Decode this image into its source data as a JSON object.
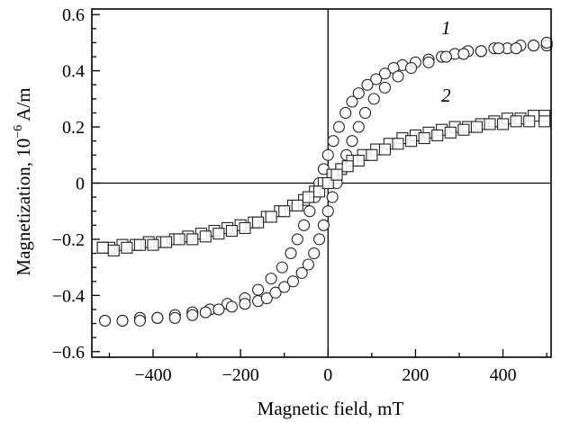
{
  "chart_data": {
    "type": "scatter",
    "xlabel": "Magnetic field, mT",
    "ylabel_prefix": "Magnetization, 10",
    "ylabel_exp": "−6",
    "ylabel_suffix": " A/m",
    "xlim": [
      -540,
      510
    ],
    "ylim": [
      -0.62,
      0.62
    ],
    "xticks": [
      -400,
      -200,
      0,
      200,
      400
    ],
    "xtick_labels": [
      "−400",
      "−200",
      "0",
      "200",
      "400"
    ],
    "yticks": [
      -0.6,
      -0.4,
      -0.2,
      0,
      0.2,
      0.4,
      0.6
    ],
    "ytick_labels": [
      "−0.6",
      "−0.4",
      "−0.2",
      "0",
      "0.2",
      "0.4",
      "0.6"
    ],
    "zero_lines": true,
    "grid": false,
    "series": [
      {
        "label": "1",
        "marker": "circle",
        "label_position": [
          270,
          0.53
        ],
        "branch_descending": [
          [
            500,
            0.49
          ],
          [
            470,
            0.49
          ],
          [
            440,
            0.49
          ],
          [
            410,
            0.48
          ],
          [
            380,
            0.48
          ],
          [
            350,
            0.47
          ],
          [
            320,
            0.47
          ],
          [
            290,
            0.46
          ],
          [
            260,
            0.45
          ],
          [
            230,
            0.44
          ],
          [
            200,
            0.43
          ],
          [
            170,
            0.42
          ],
          [
            150,
            0.41
          ],
          [
            130,
            0.39
          ],
          [
            110,
            0.37
          ],
          [
            90,
            0.35
          ],
          [
            70,
            0.32
          ],
          [
            55,
            0.29
          ],
          [
            40,
            0.25
          ],
          [
            25,
            0.2
          ],
          [
            12,
            0.15
          ],
          [
            0,
            0.1
          ],
          [
            -10,
            0.05
          ],
          [
            -20,
            0.0
          ],
          [
            -30,
            -0.05
          ],
          [
            -42,
            -0.1
          ],
          [
            -55,
            -0.15
          ],
          [
            -70,
            -0.2
          ],
          [
            -85,
            -0.25
          ],
          [
            -105,
            -0.3
          ],
          [
            -130,
            -0.34
          ],
          [
            -160,
            -0.38
          ],
          [
            -190,
            -0.41
          ],
          [
            -230,
            -0.43
          ],
          [
            -270,
            -0.45
          ],
          [
            -310,
            -0.46
          ],
          [
            -350,
            -0.47
          ],
          [
            -390,
            -0.48
          ],
          [
            -430,
            -0.48
          ],
          [
            -470,
            -0.49
          ],
          [
            -510,
            -0.49
          ]
        ],
        "branch_ascending": [
          [
            -510,
            -0.49
          ],
          [
            -470,
            -0.49
          ],
          [
            -430,
            -0.49
          ],
          [
            -390,
            -0.48
          ],
          [
            -350,
            -0.48
          ],
          [
            -310,
            -0.47
          ],
          [
            -280,
            -0.46
          ],
          [
            -250,
            -0.45
          ],
          [
            -220,
            -0.44
          ],
          [
            -190,
            -0.43
          ],
          [
            -160,
            -0.42
          ],
          [
            -140,
            -0.41
          ],
          [
            -120,
            -0.39
          ],
          [
            -100,
            -0.37
          ],
          [
            -80,
            -0.35
          ],
          [
            -60,
            -0.32
          ],
          [
            -45,
            -0.29
          ],
          [
            -32,
            -0.25
          ],
          [
            -20,
            -0.2
          ],
          [
            -10,
            -0.15
          ],
          [
            0,
            -0.1
          ],
          [
            10,
            -0.05
          ],
          [
            20,
            0.0
          ],
          [
            30,
            0.05
          ],
          [
            42,
            0.1
          ],
          [
            55,
            0.15
          ],
          [
            70,
            0.2
          ],
          [
            85,
            0.25
          ],
          [
            105,
            0.3
          ],
          [
            130,
            0.34
          ],
          [
            160,
            0.38
          ],
          [
            190,
            0.41
          ],
          [
            230,
            0.43
          ],
          [
            270,
            0.45
          ],
          [
            310,
            0.46
          ],
          [
            350,
            0.47
          ],
          [
            390,
            0.48
          ],
          [
            430,
            0.48
          ],
          [
            470,
            0.49
          ],
          [
            500,
            0.5
          ]
        ]
      },
      {
        "label": "2",
        "marker": "square",
        "label_position": [
          270,
          0.29
        ],
        "branch_descending": [
          [
            495,
            0.24
          ],
          [
            470,
            0.24
          ],
          [
            440,
            0.23
          ],
          [
            410,
            0.23
          ],
          [
            380,
            0.22
          ],
          [
            350,
            0.21
          ],
          [
            320,
            0.2
          ],
          [
            290,
            0.2
          ],
          [
            260,
            0.19
          ],
          [
            230,
            0.18
          ],
          [
            200,
            0.17
          ],
          [
            170,
            0.16
          ],
          [
            140,
            0.14
          ],
          [
            110,
            0.12
          ],
          [
            80,
            0.1
          ],
          [
            55,
            0.08
          ],
          [
            30,
            0.05
          ],
          [
            10,
            0.03
          ],
          [
            -10,
            0.0
          ],
          [
            -30,
            -0.03
          ],
          [
            -55,
            -0.06
          ],
          [
            -80,
            -0.08
          ],
          [
            -110,
            -0.1
          ],
          [
            -140,
            -0.12
          ],
          [
            -170,
            -0.14
          ],
          [
            -200,
            -0.15
          ],
          [
            -230,
            -0.16
          ],
          [
            -260,
            -0.17
          ],
          [
            -290,
            -0.18
          ],
          [
            -320,
            -0.19
          ],
          [
            -350,
            -0.2
          ],
          [
            -380,
            -0.21
          ],
          [
            -410,
            -0.21
          ],
          [
            -440,
            -0.22
          ],
          [
            -470,
            -0.22
          ],
          [
            -500,
            -0.23
          ],
          [
            -515,
            -0.23
          ]
        ],
        "branch_ascending": [
          [
            -515,
            -0.23
          ],
          [
            -490,
            -0.24
          ],
          [
            -460,
            -0.23
          ],
          [
            -430,
            -0.22
          ],
          [
            -400,
            -0.22
          ],
          [
            -370,
            -0.21
          ],
          [
            -340,
            -0.2
          ],
          [
            -310,
            -0.2
          ],
          [
            -280,
            -0.19
          ],
          [
            -250,
            -0.18
          ],
          [
            -220,
            -0.17
          ],
          [
            -190,
            -0.16
          ],
          [
            -160,
            -0.14
          ],
          [
            -130,
            -0.12
          ],
          [
            -100,
            -0.1
          ],
          [
            -70,
            -0.08
          ],
          [
            -45,
            -0.05
          ],
          [
            -20,
            -0.03
          ],
          [
            0,
            0.0
          ],
          [
            20,
            0.03
          ],
          [
            45,
            0.06
          ],
          [
            70,
            0.08
          ],
          [
            100,
            0.1
          ],
          [
            130,
            0.12
          ],
          [
            160,
            0.14
          ],
          [
            190,
            0.15
          ],
          [
            220,
            0.16
          ],
          [
            250,
            0.17
          ],
          [
            280,
            0.18
          ],
          [
            310,
            0.19
          ],
          [
            340,
            0.2
          ],
          [
            370,
            0.21
          ],
          [
            400,
            0.21
          ],
          [
            430,
            0.22
          ],
          [
            460,
            0.22
          ],
          [
            495,
            0.22
          ]
        ]
      }
    ]
  }
}
